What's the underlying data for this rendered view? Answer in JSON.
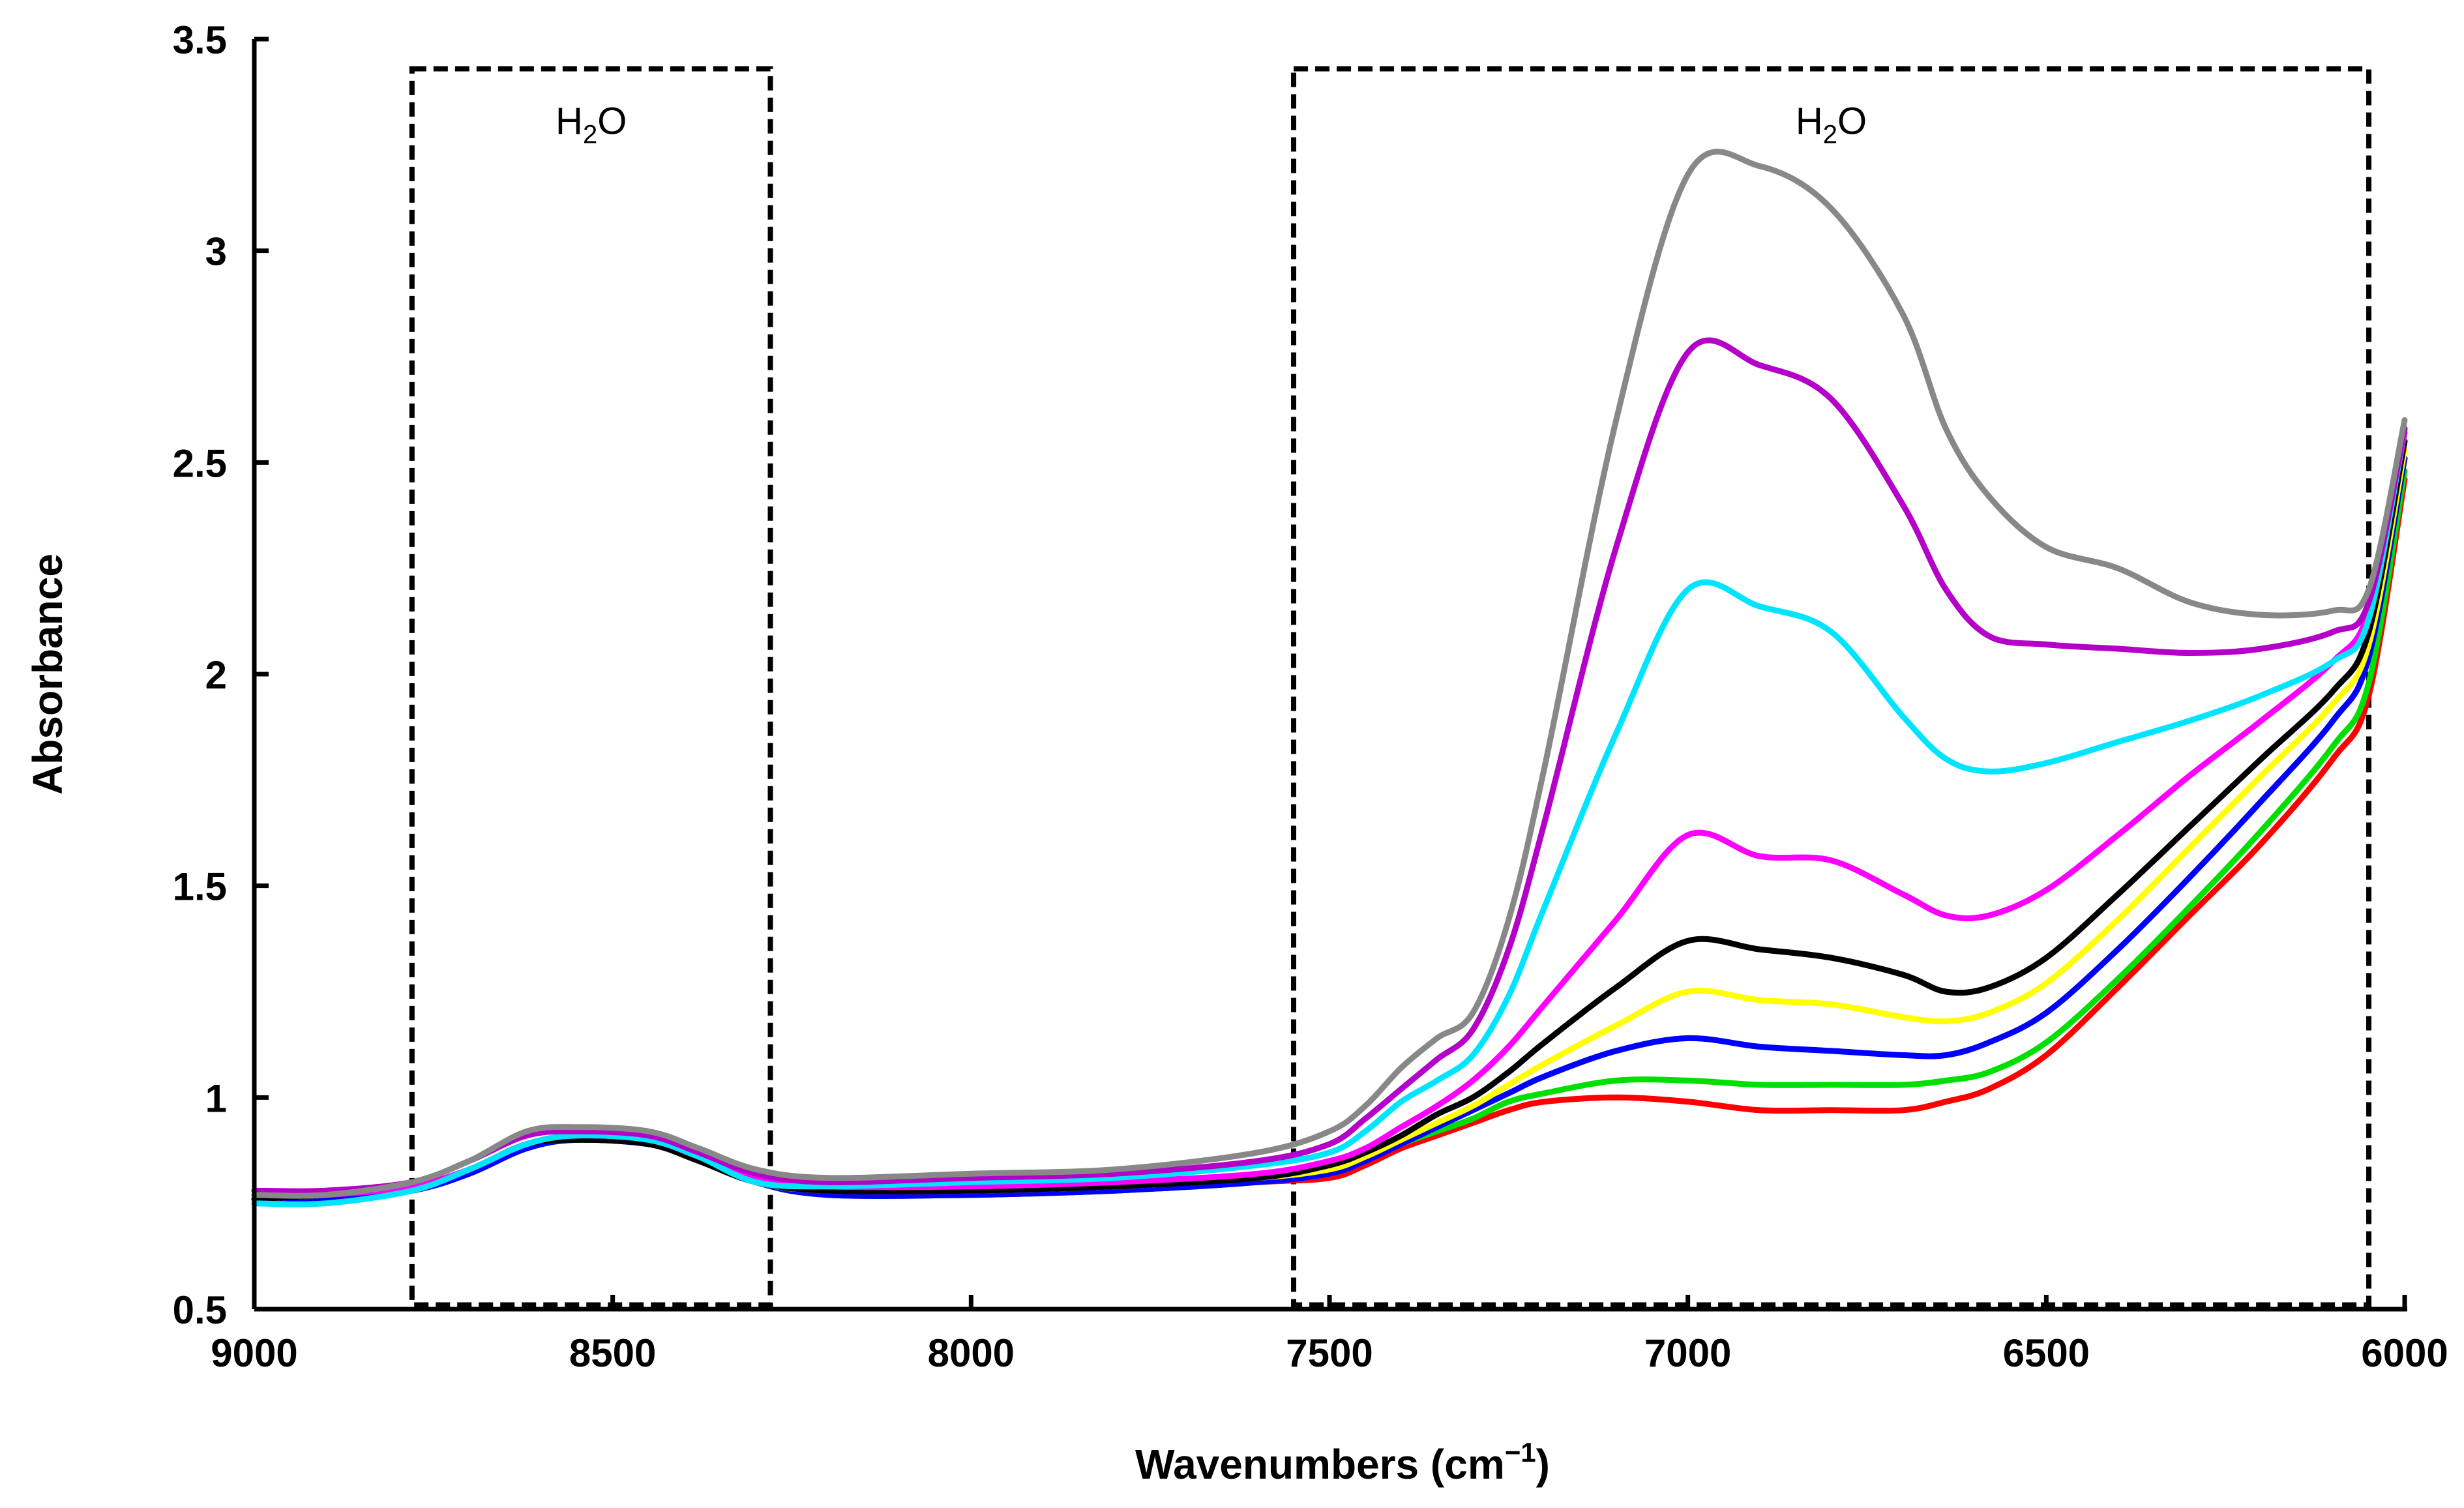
{
  "chart_data": {
    "type": "line",
    "title": "",
    "xlabel": "Wavenumbers (cm",
    "xlabel_sup": "−1",
    "xlabel_close": ")",
    "ylabel": "Absorbance",
    "xlim": [
      9000,
      6000
    ],
    "x_reversed": true,
    "ylim": [
      0.5,
      3.5
    ],
    "grid": false,
    "x_ticks": [
      9000,
      8500,
      8000,
      7500,
      7000,
      6500,
      6000
    ],
    "x_tick_labels": [
      "9000",
      "8500",
      "8000",
      "7500",
      "7000",
      "6500",
      "6000"
    ],
    "y_ticks": [
      0.5,
      1,
      1.5,
      2,
      2.5,
      3,
      3.5
    ],
    "y_tick_labels": [
      "0.5",
      "1",
      "1.5",
      "2",
      "2.5",
      "3",
      "3.5"
    ],
    "regions": [
      {
        "name": "h2o-region-1",
        "label": "H",
        "label_sub": "2",
        "label_end": "O",
        "x_from": 8780,
        "x_to": 8280,
        "y_from": 0.51,
        "y_to": 3.43
      },
      {
        "name": "h2o-region-2",
        "label": "H",
        "label_sub": "2",
        "label_end": "O",
        "x_from": 7550,
        "x_to": 6050,
        "y_from": 0.51,
        "y_to": 3.43
      }
    ],
    "series": [
      {
        "name": "red",
        "color": "#ff0000",
        "x": [
          9000,
          8900,
          8780,
          8700,
          8620,
          8550,
          8450,
          8380,
          8300,
          8200,
          8000,
          7800,
          7600,
          7500,
          7450,
          7400,
          7350,
          7300,
          7250,
          7200,
          7100,
          7000,
          6900,
          6800,
          6700,
          6640,
          6580,
          6500,
          6400,
          6300,
          6200,
          6100,
          6050,
          6000
        ],
        "values": [
          0.75,
          0.76,
          0.78,
          0.82,
          0.88,
          0.9,
          0.89,
          0.86,
          0.8,
          0.77,
          0.77,
          0.78,
          0.8,
          0.81,
          0.84,
          0.88,
          0.91,
          0.94,
          0.97,
          0.99,
          1.0,
          0.99,
          0.97,
          0.97,
          0.97,
          0.99,
          1.02,
          1.1,
          1.26,
          1.43,
          1.6,
          1.8,
          1.95,
          2.46
        ]
      },
      {
        "name": "green",
        "color": "#00e000",
        "x": [
          9000,
          8900,
          8780,
          8700,
          8620,
          8550,
          8450,
          8380,
          8300,
          8200,
          8000,
          7800,
          7600,
          7500,
          7450,
          7400,
          7350,
          7300,
          7250,
          7200,
          7100,
          7000,
          6900,
          6800,
          6700,
          6640,
          6580,
          6500,
          6400,
          6300,
          6200,
          6100,
          6050,
          6000
        ],
        "values": [
          0.76,
          0.76,
          0.78,
          0.82,
          0.88,
          0.9,
          0.89,
          0.86,
          0.8,
          0.77,
          0.77,
          0.78,
          0.8,
          0.82,
          0.85,
          0.89,
          0.92,
          0.95,
          0.99,
          1.01,
          1.04,
          1.04,
          1.03,
          1.03,
          1.03,
          1.04,
          1.06,
          1.13,
          1.28,
          1.45,
          1.63,
          1.83,
          1.98,
          2.48
        ]
      },
      {
        "name": "blue",
        "color": "#0000ff",
        "x": [
          9000,
          8900,
          8780,
          8700,
          8620,
          8550,
          8450,
          8380,
          8300,
          8200,
          8000,
          7800,
          7600,
          7500,
          7450,
          7400,
          7350,
          7300,
          7250,
          7200,
          7100,
          7000,
          6900,
          6800,
          6700,
          6640,
          6580,
          6500,
          6400,
          6300,
          6200,
          6100,
          6050,
          6000
        ],
        "values": [
          0.76,
          0.76,
          0.78,
          0.82,
          0.88,
          0.9,
          0.89,
          0.86,
          0.8,
          0.77,
          0.77,
          0.78,
          0.8,
          0.82,
          0.85,
          0.89,
          0.93,
          0.97,
          1.01,
          1.05,
          1.11,
          1.14,
          1.12,
          1.11,
          1.1,
          1.1,
          1.13,
          1.2,
          1.35,
          1.52,
          1.7,
          1.89,
          2.04,
          2.51
        ]
      },
      {
        "name": "yellow",
        "color": "#ffff00",
        "x": [
          9000,
          8900,
          8780,
          8700,
          8620,
          8550,
          8450,
          8380,
          8300,
          8200,
          8000,
          7800,
          7600,
          7500,
          7450,
          7400,
          7350,
          7300,
          7250,
          7200,
          7100,
          7000,
          6900,
          6800,
          6700,
          6640,
          6580,
          6500,
          6400,
          6300,
          6200,
          6100,
          6050,
          6000
        ],
        "values": [
          0.76,
          0.77,
          0.79,
          0.83,
          0.89,
          0.91,
          0.9,
          0.86,
          0.8,
          0.78,
          0.78,
          0.79,
          0.81,
          0.83,
          0.86,
          0.9,
          0.94,
          0.98,
          1.03,
          1.08,
          1.17,
          1.25,
          1.23,
          1.22,
          1.19,
          1.18,
          1.2,
          1.27,
          1.42,
          1.59,
          1.76,
          1.93,
          2.07,
          2.53
        ]
      },
      {
        "name": "black",
        "color": "#000000",
        "x": [
          9000,
          8900,
          8780,
          8700,
          8620,
          8550,
          8450,
          8380,
          8300,
          8200,
          8000,
          7800,
          7600,
          7500,
          7450,
          7400,
          7350,
          7300,
          7250,
          7200,
          7100,
          7000,
          6900,
          6800,
          6700,
          6640,
          6580,
          6500,
          6400,
          6300,
          6200,
          6100,
          6050,
          6000
        ],
        "values": [
          0.76,
          0.77,
          0.79,
          0.83,
          0.89,
          0.9,
          0.89,
          0.85,
          0.8,
          0.78,
          0.78,
          0.79,
          0.81,
          0.84,
          0.87,
          0.91,
          0.96,
          1.0,
          1.06,
          1.13,
          1.26,
          1.37,
          1.35,
          1.33,
          1.29,
          1.25,
          1.26,
          1.33,
          1.48,
          1.64,
          1.8,
          1.96,
          2.1,
          2.55
        ]
      },
      {
        "name": "magenta",
        "color": "#ff00ff",
        "x": [
          9000,
          8900,
          8780,
          8700,
          8620,
          8550,
          8450,
          8380,
          8300,
          8200,
          8000,
          7800,
          7600,
          7500,
          7450,
          7400,
          7350,
          7300,
          7250,
          7200,
          7100,
          7000,
          6900,
          6800,
          6700,
          6640,
          6580,
          6500,
          6400,
          6300,
          6200,
          6100,
          6050,
          6000
        ],
        "values": [
          0.77,
          0.77,
          0.79,
          0.83,
          0.89,
          0.91,
          0.9,
          0.86,
          0.81,
          0.79,
          0.79,
          0.8,
          0.82,
          0.85,
          0.88,
          0.93,
          0.98,
          1.04,
          1.12,
          1.22,
          1.42,
          1.62,
          1.57,
          1.56,
          1.48,
          1.43,
          1.43,
          1.49,
          1.62,
          1.76,
          1.89,
          2.03,
          2.15,
          2.57
        ]
      },
      {
        "name": "cyan",
        "color": "#00e5ff",
        "x": [
          9000,
          8900,
          8780,
          8700,
          8620,
          8550,
          8450,
          8380,
          8300,
          8200,
          8000,
          7800,
          7600,
          7500,
          7450,
          7400,
          7350,
          7300,
          7250,
          7200,
          7100,
          7000,
          6900,
          6800,
          6700,
          6640,
          6580,
          6500,
          6400,
          6300,
          6200,
          6100,
          6050,
          6000
        ],
        "values": [
          0.75,
          0.75,
          0.78,
          0.83,
          0.89,
          0.91,
          0.9,
          0.86,
          0.8,
          0.79,
          0.8,
          0.81,
          0.84,
          0.87,
          0.92,
          0.99,
          1.04,
          1.1,
          1.24,
          1.45,
          1.86,
          2.2,
          2.16,
          2.1,
          1.9,
          1.8,
          1.77,
          1.79,
          1.84,
          1.89,
          1.95,
          2.03,
          2.13,
          2.58
        ]
      },
      {
        "name": "purple",
        "color": "#b400c8",
        "x": [
          9000,
          8900,
          8780,
          8700,
          8620,
          8550,
          8450,
          8380,
          8300,
          8200,
          8000,
          7800,
          7600,
          7500,
          7450,
          7400,
          7350,
          7300,
          7250,
          7200,
          7100,
          7000,
          6900,
          6800,
          6700,
          6640,
          6580,
          6500,
          6400,
          6300,
          6200,
          6100,
          6050,
          6000
        ],
        "values": [
          0.78,
          0.78,
          0.8,
          0.85,
          0.91,
          0.92,
          0.91,
          0.87,
          0.82,
          0.8,
          0.81,
          0.82,
          0.85,
          0.89,
          0.95,
          1.02,
          1.09,
          1.16,
          1.35,
          1.65,
          2.3,
          2.76,
          2.73,
          2.65,
          2.4,
          2.2,
          2.09,
          2.07,
          2.06,
          2.05,
          2.06,
          2.1,
          2.17,
          2.58
        ]
      },
      {
        "name": "gray",
        "color": "#888888",
        "x": [
          9000,
          8900,
          8780,
          8700,
          8620,
          8550,
          8450,
          8380,
          8300,
          8200,
          8000,
          7800,
          7600,
          7500,
          7450,
          7400,
          7350,
          7300,
          7250,
          7200,
          7100,
          7000,
          6900,
          6800,
          6700,
          6640,
          6580,
          6500,
          6400,
          6300,
          6200,
          6100,
          6050,
          6000
        ],
        "values": [
          0.77,
          0.77,
          0.8,
          0.85,
          0.92,
          0.93,
          0.92,
          0.88,
          0.83,
          0.81,
          0.82,
          0.83,
          0.87,
          0.92,
          0.98,
          1.07,
          1.14,
          1.2,
          1.42,
          1.78,
          2.6,
          3.18,
          3.2,
          3.1,
          2.85,
          2.58,
          2.42,
          2.3,
          2.25,
          2.17,
          2.14,
          2.15,
          2.2,
          2.6
        ]
      }
    ]
  }
}
